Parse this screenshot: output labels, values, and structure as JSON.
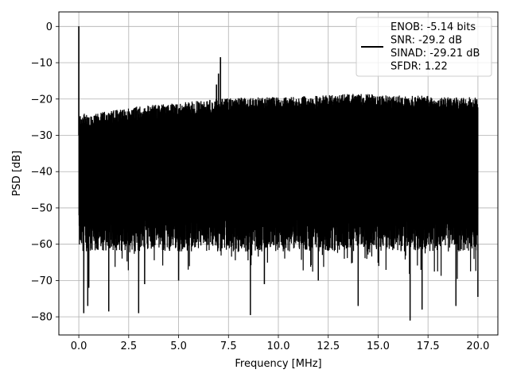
{
  "chart_data": {
    "type": "line",
    "title": "",
    "xlabel": "Frequency [MHz]",
    "ylabel": "PSD [dB]",
    "xlim": [
      -1.0,
      21.0
    ],
    "ylim": [
      -85,
      4
    ],
    "xticks": [
      0.0,
      2.5,
      5.0,
      7.5,
      10.0,
      12.5,
      15.0,
      17.5,
      20.0
    ],
    "xtick_labels": [
      "0.0",
      "2.5",
      "5.0",
      "7.5",
      "10.0",
      "12.5",
      "15.0",
      "17.5",
      "20.0"
    ],
    "yticks": [
      0,
      -10,
      -20,
      -30,
      -40,
      -50,
      -60,
      -70,
      -80
    ],
    "ytick_labels": [
      "0",
      "−10",
      "−20",
      "−30",
      "−40",
      "−50",
      "−60",
      "−70",
      "−80"
    ],
    "grid": true,
    "legend_position": "top-right",
    "legend_lines": [
      "ENOB: -5.14 bits",
      "SNR: -29.2 dB",
      "SINAD: -29.21 dB",
      "SFDR: 1.22"
    ],
    "series": [
      {
        "color": "#000000",
        "x_range": [
          0.0,
          20.0
        ],
        "noise_floor_top": [
          [
            0.0,
            -24
          ],
          [
            0.5,
            -24
          ],
          [
            1.0,
            -24
          ],
          [
            1.5,
            -23
          ],
          [
            2.0,
            -23
          ],
          [
            2.5,
            -22.5
          ],
          [
            3.0,
            -22
          ],
          [
            4.0,
            -21.5
          ],
          [
            5.0,
            -21
          ],
          [
            6.0,
            -20.5
          ],
          [
            7.0,
            -20
          ],
          [
            8.0,
            -19.5
          ],
          [
            10.0,
            -19.5
          ],
          [
            12.0,
            -19
          ],
          [
            14.0,
            -18.5
          ],
          [
            16.0,
            -19
          ],
          [
            18.0,
            -19
          ],
          [
            19.0,
            -19.5
          ],
          [
            20.0,
            -19.5
          ]
        ],
        "peaks": [
          {
            "x": 0.0,
            "y": 0.0
          },
          {
            "x": 7.1,
            "y": -8.5
          },
          {
            "x": 7.0,
            "y": -13.0
          },
          {
            "x": 6.9,
            "y": -16.0
          }
        ],
        "deep_dips": [
          {
            "x": 0.25,
            "y": -79
          },
          {
            "x": 0.45,
            "y": -77
          },
          {
            "x": 0.5,
            "y": -72
          },
          {
            "x": 1.5,
            "y": -78.5
          },
          {
            "x": 3.0,
            "y": -79
          },
          {
            "x": 3.3,
            "y": -71
          },
          {
            "x": 5.0,
            "y": -70
          },
          {
            "x": 8.6,
            "y": -79.5
          },
          {
            "x": 14.0,
            "y": -77
          },
          {
            "x": 16.6,
            "y": -81
          },
          {
            "x": 17.2,
            "y": -78
          },
          {
            "x": 18.9,
            "y": -77
          },
          {
            "x": 20.0,
            "y": -74.5
          },
          {
            "x": 9.3,
            "y": -71
          },
          {
            "x": 12.0,
            "y": -70
          }
        ],
        "typical_bottom": -62
      }
    ]
  }
}
